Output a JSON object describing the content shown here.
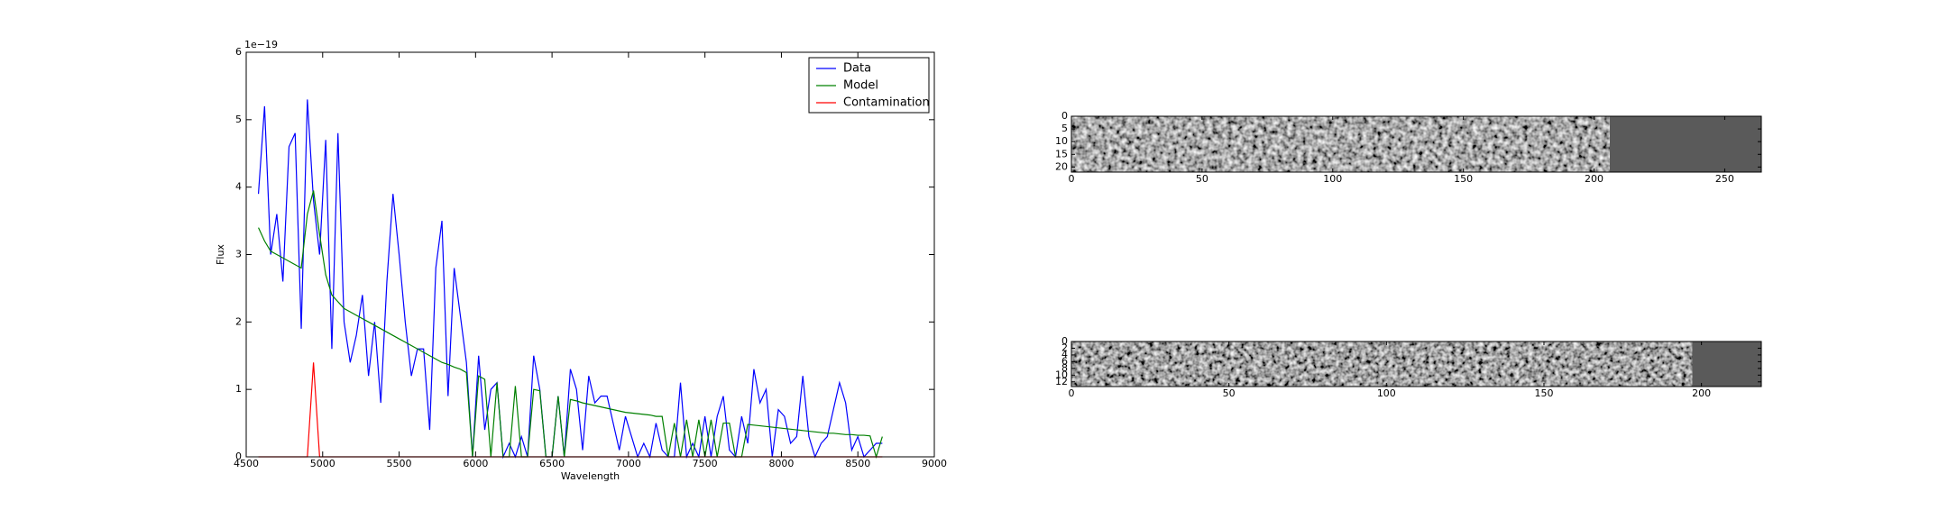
{
  "chart_data": [
    {
      "type": "line",
      "xlabel": "Wavelength",
      "ylabel": "Flux",
      "y_offset_label": "1e−19",
      "xlim": [
        4500,
        9000
      ],
      "xticks": [
        4500,
        5000,
        5500,
        6000,
        6500,
        7000,
        7500,
        8000,
        8500,
        9000
      ],
      "ylim": [
        0,
        6
      ],
      "yticks": [
        0,
        1,
        2,
        3,
        4,
        5,
        6
      ],
      "legend": "upper right",
      "x": [
        4580,
        4620,
        4660,
        4700,
        4740,
        4780,
        4820,
        4860,
        4900,
        4940,
        4980,
        5020,
        5060,
        5100,
        5140,
        5180,
        5220,
        5260,
        5300,
        5340,
        5380,
        5420,
        5460,
        5500,
        5540,
        5580,
        5620,
        5660,
        5700,
        5740,
        5780,
        5820,
        5860,
        5900,
        5940,
        5980,
        6020,
        6060,
        6100,
        6140,
        6180,
        6220,
        6260,
        6300,
        6340,
        6380,
        6420,
        6460,
        6500,
        6540,
        6580,
        6620,
        6660,
        6700,
        6740,
        6780,
        6820,
        6860,
        6900,
        6940,
        6980,
        7020,
        7060,
        7100,
        7140,
        7180,
        7220,
        7260,
        7300,
        7340,
        7380,
        7420,
        7460,
        7500,
        7540,
        7580,
        7620,
        7660,
        7700,
        7740,
        7780,
        7820,
        7860,
        7900,
        7940,
        7980,
        8020,
        8060,
        8100,
        8140,
        8180,
        8220,
        8260,
        8300,
        8340,
        8380,
        8420,
        8460,
        8500,
        8540,
        8580,
        8620,
        8660
      ],
      "series": [
        {
          "name": "Data",
          "color": "#0000ff",
          "values": [
            3.9,
            5.2,
            3.0,
            3.6,
            2.6,
            4.6,
            4.8,
            1.9,
            5.3,
            3.8,
            3.0,
            4.7,
            1.6,
            4.8,
            2.0,
            1.4,
            1.8,
            2.4,
            1.2,
            2.0,
            0.8,
            2.6,
            3.9,
            3.0,
            2.0,
            1.2,
            1.6,
            1.6,
            0.4,
            2.8,
            3.5,
            0.9,
            2.8,
            2.1,
            1.4,
            0.0,
            1.5,
            0.4,
            1.0,
            1.1,
            0.0,
            0.2,
            0.0,
            0.3,
            0.0,
            1.5,
            1.0,
            0.0,
            0.0,
            0.9,
            0.0,
            1.3,
            1.0,
            0.1,
            1.2,
            0.8,
            0.9,
            0.9,
            0.5,
            0.1,
            0.6,
            0.3,
            0.0,
            0.2,
            0.0,
            0.5,
            0.1,
            0.0,
            0.0,
            1.1,
            0.0,
            0.2,
            0.0,
            0.6,
            0.0,
            0.6,
            0.9,
            0.1,
            0.0,
            0.6,
            0.2,
            1.3,
            0.8,
            1.0,
            0.0,
            0.7,
            0.6,
            0.2,
            0.3,
            1.2,
            0.3,
            0.0,
            0.2,
            0.3,
            0.7,
            1.1,
            0.8,
            0.1,
            0.3,
            0.0,
            0.1,
            0.2,
            0.2
          ]
        },
        {
          "name": "Model",
          "color": "#008000",
          "values": [
            3.4,
            3.2,
            3.05,
            3.0,
            2.95,
            2.9,
            2.85,
            2.8,
            3.6,
            3.95,
            3.3,
            2.7,
            2.4,
            2.3,
            2.2,
            2.15,
            2.1,
            2.05,
            2.0,
            1.95,
            1.9,
            1.85,
            1.8,
            1.75,
            1.7,
            1.65,
            1.6,
            1.55,
            1.5,
            1.45,
            1.4,
            1.37,
            1.33,
            1.3,
            1.25,
            0.0,
            1.2,
            1.15,
            0.0,
            1.1,
            0.0,
            0.0,
            1.05,
            0.0,
            0.0,
            1.0,
            0.98,
            0.0,
            0.0,
            0.9,
            0.0,
            0.85,
            0.83,
            0.8,
            0.78,
            0.76,
            0.74,
            0.72,
            0.7,
            0.68,
            0.66,
            0.65,
            0.64,
            0.63,
            0.62,
            0.6,
            0.6,
            0.0,
            0.5,
            0.0,
            0.55,
            0.0,
            0.55,
            0.0,
            0.55,
            0.0,
            0.5,
            0.5,
            0.0,
            0.0,
            0.48,
            0.47,
            0.46,
            0.45,
            0.44,
            0.43,
            0.42,
            0.41,
            0.4,
            0.39,
            0.38,
            0.37,
            0.36,
            0.35,
            0.35,
            0.34,
            0.33,
            0.33,
            0.32,
            0.32,
            0.31,
            0.0,
            0.3
          ]
        },
        {
          "name": "Contamination",
          "color": "#ff0000",
          "values": [
            0,
            0,
            0,
            0,
            0,
            0,
            0,
            0,
            0,
            1.4,
            0,
            0,
            0,
            0,
            0,
            0,
            0,
            0,
            0,
            0,
            0,
            0,
            0,
            0,
            0,
            0,
            0,
            0,
            0,
            0,
            0,
            0,
            0,
            0,
            0,
            0,
            0,
            0,
            0,
            0,
            0,
            0,
            0,
            0,
            0,
            0,
            0,
            0,
            0,
            0,
            0,
            0,
            0,
            0,
            0,
            0,
            0,
            0,
            0,
            0,
            0,
            0,
            0,
            0,
            0,
            0,
            0,
            0,
            0,
            0,
            0,
            0,
            0,
            0,
            0,
            0,
            0,
            0,
            0,
            0,
            0,
            0,
            0,
            0,
            0,
            0,
            0,
            0,
            0,
            0,
            0,
            0,
            0,
            0,
            0,
            0,
            0,
            0,
            0,
            0,
            0,
            0,
            0
          ]
        }
      ]
    },
    {
      "type": "image",
      "origin": "upper",
      "xlim": [
        0,
        264
      ],
      "xticks": [
        0,
        50,
        100,
        150,
        200,
        250
      ],
      "ylim": [
        0,
        22
      ],
      "yticks": [
        0,
        5,
        10,
        15,
        20
      ]
    },
    {
      "type": "image",
      "origin": "upper",
      "xlim": [
        0,
        219
      ],
      "xticks": [
        0,
        50,
        100,
        150,
        200
      ],
      "ylim": [
        0,
        13.4
      ],
      "yticks": [
        0,
        2,
        4,
        6,
        8,
        10,
        12
      ]
    }
  ]
}
